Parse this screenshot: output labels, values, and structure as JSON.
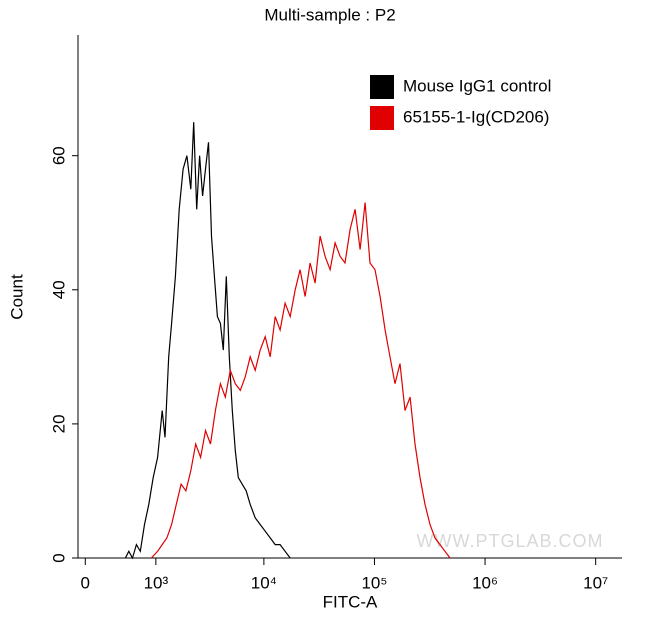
{
  "chart_data": {
    "type": "histogram-line",
    "title": "Multi-sample : P2",
    "xlabel": "FITC-A",
    "ylabel": "Count",
    "watermark": "WWW.PTGLAB.COM",
    "xscale": "biexponential",
    "xlim": [
      -74,
      17300000
    ],
    "ylim": [
      0,
      78
    ],
    "xticks": [
      0,
      {
        "value": 1000,
        "label": "10³"
      },
      {
        "value": 10000,
        "label": "10⁴"
      },
      {
        "value": 100000,
        "label": "10⁵"
      },
      {
        "value": 1000000,
        "label": "10⁶"
      },
      {
        "value": 10000000,
        "label": "10⁷"
      }
    ],
    "yticks": [
      0,
      20,
      40,
      60
    ],
    "legend": "upper right",
    "series": [
      {
        "name": "Mouse IgG1 control",
        "color": "#000000",
        "x": [
          454,
          503,
          558,
          620,
          687,
          763,
          847,
          940,
          1042,
          1157,
          1231,
          1337,
          1425,
          1549,
          1683,
          1829,
          1987,
          2159,
          2297,
          2445,
          2604,
          2773,
          2951,
          3141,
          3343,
          3557,
          3786,
          4030,
          4288,
          4563,
          4863,
          5176,
          5508,
          5861,
          6368,
          6918,
          7516,
          8337,
          9268,
          10280,
          11400,
          12650,
          14030,
          15560,
          17300
        ],
        "values": [
          0,
          1,
          0,
          2,
          1,
          5,
          8,
          12,
          15,
          22,
          18,
          30,
          35,
          42,
          52,
          58,
          60,
          55,
          65,
          52,
          60,
          54,
          58,
          62,
          48,
          42,
          36,
          35,
          31,
          42,
          30,
          22,
          16,
          12,
          11,
          10,
          8,
          6,
          5,
          4,
          3,
          2,
          2,
          1,
          0
        ]
      },
      {
        "name": "65155-1-Ig(CD206)",
        "color": "#e00000",
        "x": [
          901,
          1042,
          1157,
          1283,
          1425,
          1581,
          1754,
          1945,
          2159,
          2395,
          2659,
          2951,
          3273,
          3631,
          4030,
          4470,
          4962,
          5508,
          6109,
          6776,
          7516,
          8337,
          9268,
          10280,
          11400,
          12650,
          14030,
          15560,
          17300,
          19190,
          21280,
          23610,
          26180,
          29040,
          32280,
          35810,
          39720,
          44060,
          48870,
          54200,
          60250,
          66830,
          74130,
          82220,
          91200,
          101200,
          112400,
          124700,
          138300,
          153500,
          170200,
          188800,
          209900,
          232800,
          258200,
          286400,
          317700,
          352400,
          391700,
          434500,
          481900
        ],
        "values": [
          0,
          1,
          2,
          3,
          5,
          8,
          11,
          10,
          13,
          17,
          15,
          19,
          17,
          22,
          26,
          24,
          28,
          26,
          25,
          27,
          30,
          28,
          31,
          33,
          30,
          36,
          34,
          38,
          36,
          40,
          43,
          39,
          44,
          41,
          48,
          45,
          43,
          47,
          45,
          44,
          49,
          52,
          46,
          53,
          44,
          43,
          39,
          34,
          30,
          26,
          29,
          22,
          24,
          17,
          12,
          8,
          5,
          3,
          2,
          1,
          0
        ]
      }
    ]
  }
}
